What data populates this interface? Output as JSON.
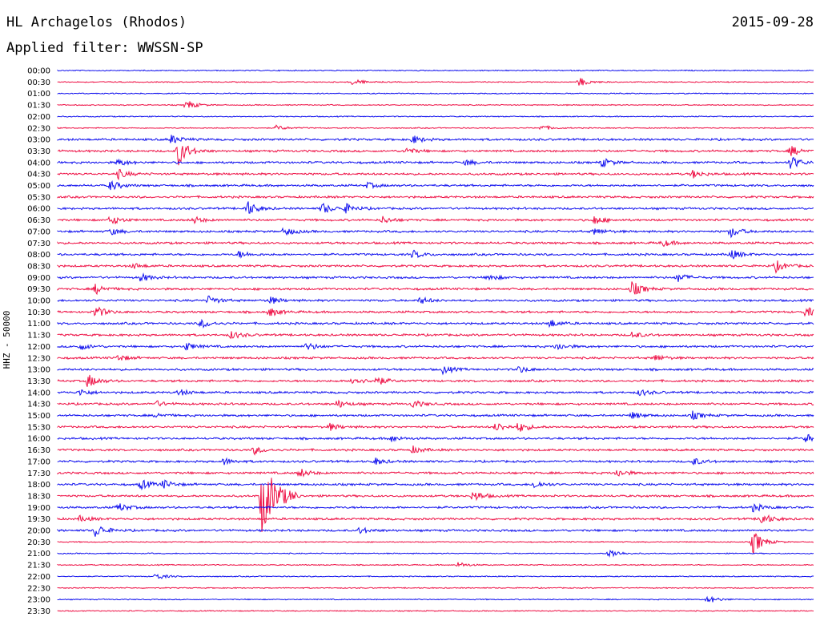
{
  "header": {
    "station": "HL Archagelos (Rhodos)",
    "date": "2015-09-28",
    "filter": "Applied filter: WWSSN-SP"
  },
  "channel_label": "HHZ - 50000",
  "colors": {
    "trace_a": "#1010ee",
    "trace_b": "#ee1045"
  },
  "time_labels": [
    "00:00",
    "00:30",
    "01:00",
    "01:30",
    "02:00",
    "02:30",
    "03:00",
    "03:30",
    "04:00",
    "04:30",
    "05:00",
    "05:30",
    "06:00",
    "06:30",
    "07:00",
    "07:30",
    "08:00",
    "08:30",
    "09:00",
    "09:30",
    "10:00",
    "10:30",
    "11:00",
    "11:30",
    "12:00",
    "12:30",
    "13:00",
    "13:30",
    "14:00",
    "14:30",
    "15:00",
    "15:30",
    "16:00",
    "16:30",
    "17:00",
    "17:30",
    "18:00",
    "18:30",
    "19:00",
    "19:30",
    "20:00",
    "20:30",
    "21:00",
    "21:30",
    "22:00",
    "22:30",
    "23:00",
    "23:30"
  ],
  "events": [
    {
      "row": 1,
      "t": 0.39,
      "a": 0.6
    },
    {
      "row": 1,
      "t": 0.69,
      "a": 0.8
    },
    {
      "row": 3,
      "t": 0.17,
      "a": 0.9
    },
    {
      "row": 5,
      "t": 0.29,
      "a": 0.5
    },
    {
      "row": 5,
      "t": 0.64,
      "a": 0.5
    },
    {
      "row": 6,
      "t": 0.15,
      "a": 0.8
    },
    {
      "row": 6,
      "t": 0.47,
      "a": 0.7
    },
    {
      "row": 7,
      "t": 0.16,
      "a": 2.5
    },
    {
      "row": 7,
      "t": 0.46,
      "a": 0.6
    },
    {
      "row": 7,
      "t": 0.97,
      "a": 0.9
    },
    {
      "row": 8,
      "t": 0.08,
      "a": 0.6
    },
    {
      "row": 8,
      "t": 0.54,
      "a": 0.5
    },
    {
      "row": 8,
      "t": 0.72,
      "a": 0.8
    },
    {
      "row": 8,
      "t": 0.97,
      "a": 1.2
    },
    {
      "row": 9,
      "t": 0.08,
      "a": 0.8
    },
    {
      "row": 9,
      "t": 0.84,
      "a": 0.7
    },
    {
      "row": 10,
      "t": 0.07,
      "a": 0.9
    },
    {
      "row": 10,
      "t": 0.41,
      "a": 0.5
    },
    {
      "row": 12,
      "t": 0.25,
      "a": 1.4
    },
    {
      "row": 12,
      "t": 0.35,
      "a": 1.0
    },
    {
      "row": 12,
      "t": 0.38,
      "a": 0.8
    },
    {
      "row": 13,
      "t": 0.07,
      "a": 0.9
    },
    {
      "row": 13,
      "t": 0.18,
      "a": 0.6
    },
    {
      "row": 13,
      "t": 0.43,
      "a": 0.6
    },
    {
      "row": 13,
      "t": 0.71,
      "a": 0.8
    },
    {
      "row": 14,
      "t": 0.07,
      "a": 0.6
    },
    {
      "row": 14,
      "t": 0.3,
      "a": 0.8
    },
    {
      "row": 14,
      "t": 0.71,
      "a": 0.6
    },
    {
      "row": 14,
      "t": 0.89,
      "a": 1.0
    },
    {
      "row": 15,
      "t": 0.8,
      "a": 0.6
    },
    {
      "row": 16,
      "t": 0.24,
      "a": 0.6
    },
    {
      "row": 16,
      "t": 0.47,
      "a": 0.7
    },
    {
      "row": 16,
      "t": 0.89,
      "a": 0.9
    },
    {
      "row": 17,
      "t": 0.1,
      "a": 0.5
    },
    {
      "row": 17,
      "t": 0.95,
      "a": 1.0
    },
    {
      "row": 18,
      "t": 0.11,
      "a": 0.7
    },
    {
      "row": 18,
      "t": 0.57,
      "a": 0.6
    },
    {
      "row": 18,
      "t": 0.82,
      "a": 0.8
    },
    {
      "row": 19,
      "t": 0.05,
      "a": 0.9
    },
    {
      "row": 19,
      "t": 0.76,
      "a": 1.4
    },
    {
      "row": 20,
      "t": 0.2,
      "a": 0.8
    },
    {
      "row": 20,
      "t": 0.28,
      "a": 0.7
    },
    {
      "row": 20,
      "t": 0.48,
      "a": 0.6
    },
    {
      "row": 21,
      "t": 0.05,
      "a": 1.1
    },
    {
      "row": 21,
      "t": 0.28,
      "a": 0.8
    },
    {
      "row": 21,
      "t": 0.99,
      "a": 0.9
    },
    {
      "row": 22,
      "t": 0.19,
      "a": 0.8
    },
    {
      "row": 22,
      "t": 0.65,
      "a": 0.8
    },
    {
      "row": 23,
      "t": 0.23,
      "a": 0.7
    },
    {
      "row": 23,
      "t": 0.76,
      "a": 0.6
    },
    {
      "row": 24,
      "t": 0.03,
      "a": 0.6
    },
    {
      "row": 24,
      "t": 0.17,
      "a": 0.7
    },
    {
      "row": 24,
      "t": 0.33,
      "a": 0.7
    },
    {
      "row": 24,
      "t": 0.66,
      "a": 0.7
    },
    {
      "row": 25,
      "t": 0.08,
      "a": 0.6
    },
    {
      "row": 25,
      "t": 0.79,
      "a": 0.6
    },
    {
      "row": 26,
      "t": 0.51,
      "a": 0.7
    },
    {
      "row": 26,
      "t": 0.61,
      "a": 0.6
    },
    {
      "row": 27,
      "t": 0.04,
      "a": 1.2
    },
    {
      "row": 27,
      "t": 0.39,
      "a": 0.8
    },
    {
      "row": 27,
      "t": 0.42,
      "a": 0.9
    },
    {
      "row": 28,
      "t": 0.03,
      "a": 0.6
    },
    {
      "row": 28,
      "t": 0.16,
      "a": 0.6
    },
    {
      "row": 28,
      "t": 0.77,
      "a": 0.6
    },
    {
      "row": 29,
      "t": 0.13,
      "a": 0.5
    },
    {
      "row": 29,
      "t": 0.37,
      "a": 0.7
    },
    {
      "row": 29,
      "t": 0.47,
      "a": 0.7
    },
    {
      "row": 30,
      "t": 0.13,
      "a": 0.4
    },
    {
      "row": 30,
      "t": 0.76,
      "a": 0.6
    },
    {
      "row": 30,
      "t": 0.84,
      "a": 0.7
    },
    {
      "row": 31,
      "t": 0.36,
      "a": 0.6
    },
    {
      "row": 31,
      "t": 0.58,
      "a": 0.8
    },
    {
      "row": 31,
      "t": 0.61,
      "a": 0.9
    },
    {
      "row": 32,
      "t": 0.44,
      "a": 0.6
    },
    {
      "row": 32,
      "t": 0.99,
      "a": 0.8
    },
    {
      "row": 33,
      "t": 0.26,
      "a": 0.7
    },
    {
      "row": 33,
      "t": 0.47,
      "a": 0.6
    },
    {
      "row": 34,
      "t": 0.22,
      "a": 0.6
    },
    {
      "row": 34,
      "t": 0.42,
      "a": 0.6
    },
    {
      "row": 34,
      "t": 0.84,
      "a": 0.7
    },
    {
      "row": 35,
      "t": 0.32,
      "a": 0.8
    },
    {
      "row": 35,
      "t": 0.74,
      "a": 0.7
    },
    {
      "row": 36,
      "t": 0.11,
      "a": 0.9
    },
    {
      "row": 36,
      "t": 0.14,
      "a": 0.7
    },
    {
      "row": 36,
      "t": 0.63,
      "a": 0.7
    },
    {
      "row": 37,
      "t": 0.27,
      "a": 6.5
    },
    {
      "row": 37,
      "t": 0.55,
      "a": 1.0
    },
    {
      "row": 38,
      "t": 0.08,
      "a": 0.8
    },
    {
      "row": 38,
      "t": 0.92,
      "a": 0.7
    },
    {
      "row": 39,
      "t": 0.03,
      "a": 0.5
    },
    {
      "row": 39,
      "t": 0.93,
      "a": 1.2
    },
    {
      "row": 40,
      "t": 0.05,
      "a": 1.2
    },
    {
      "row": 40,
      "t": 0.4,
      "a": 0.6
    },
    {
      "row": 41,
      "t": 0.92,
      "a": 2.2
    },
    {
      "row": 42,
      "t": 0.73,
      "a": 0.9
    },
    {
      "row": 43,
      "t": 0.53,
      "a": 0.5
    },
    {
      "row": 44,
      "t": 0.13,
      "a": 0.6
    },
    {
      "row": 46,
      "t": 0.86,
      "a": 0.7
    }
  ]
}
